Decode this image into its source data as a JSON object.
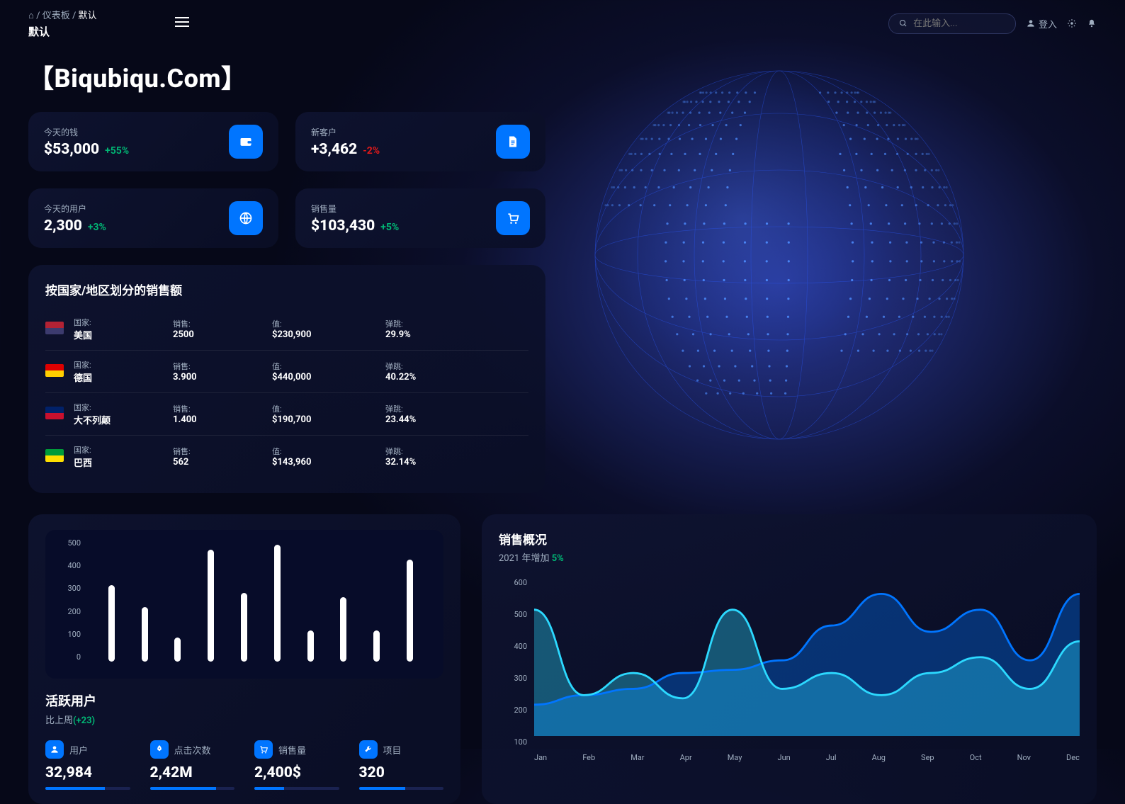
{
  "breadcrumb": {
    "dashboard": "仪表板",
    "current": "默认",
    "title": "默认"
  },
  "search": {
    "placeholder": "在此输入..."
  },
  "login_label": "登入",
  "site_title": "【Biqubiqu.Com】",
  "stats": [
    {
      "label": "今天的钱",
      "value": "$53,000",
      "delta": "+55%",
      "delta_class": "pos",
      "icon": "wallet"
    },
    {
      "label": "新客户",
      "value": "+3,462",
      "delta": "-2%",
      "delta_class": "neg",
      "icon": "doc"
    },
    {
      "label": "今天的用户",
      "value": "2,300",
      "delta": "+3%",
      "delta_class": "pos",
      "icon": "globe"
    },
    {
      "label": "销售量",
      "value": "$103,430",
      "delta": "+5%",
      "delta_class": "pos",
      "icon": "cart"
    }
  ],
  "country_panel": {
    "title": "按国家/地区划分的销售额",
    "headers": {
      "country": "国家:",
      "sales": "销售:",
      "value": "值:",
      "bounce": "弹跳:"
    },
    "rows": [
      {
        "flag": "#b22234",
        "flag2": "#3c3b6e",
        "name": "美国",
        "sales": "2500",
        "value": "$230,900",
        "bounce": "29.9%"
      },
      {
        "flag": "#dd0000",
        "flag2": "#ffce00",
        "name": "德国",
        "sales": "3.900",
        "value": "$440,000",
        "bounce": "40.22%"
      },
      {
        "flag": "#012169",
        "flag2": "#c8102e",
        "name": "大不列颠",
        "sales": "1.400",
        "value": "$190,700",
        "bounce": "23.44%"
      },
      {
        "flag": "#009b3a",
        "flag2": "#fedf00",
        "name": "巴西",
        "sales": "562",
        "value": "$143,960",
        "bounce": "32.14%"
      }
    ]
  },
  "bar_chart": {
    "ymax": 500,
    "ytick_step": 100,
    "ylabels": [
      "500",
      "400",
      "300",
      "200",
      "100",
      "0"
    ],
    "values": [
      320,
      230,
      100,
      470,
      290,
      490,
      130,
      270,
      130,
      430
    ],
    "bar_color": "#ffffff",
    "bg_color": "#070c29"
  },
  "active_users": {
    "title": "活跃用户",
    "subtitle_prefix": "比上周",
    "subtitle_value": "(+23)",
    "kpis": [
      {
        "icon": "user",
        "label": "用户",
        "value": "32,984",
        "progress": 70
      },
      {
        "icon": "rocket",
        "label": "点击次数",
        "value": "2,42M",
        "progress": 78
      },
      {
        "icon": "cart",
        "label": "销售量",
        "value": "2,400$",
        "progress": 35
      },
      {
        "icon": "wrench",
        "label": "项目",
        "value": "320",
        "progress": 55
      }
    ]
  },
  "sales_overview": {
    "title": "销售概况",
    "subtitle_year": "2021 年",
    "subtitle_text": "增加",
    "subtitle_pct": "5%",
    "ylabels": [
      "600",
      "500",
      "400",
      "300",
      "200",
      "100"
    ],
    "xlabels": [
      "Jan",
      "Feb",
      "Mar",
      "Apr",
      "May",
      "Jun",
      "Jul",
      "Aug",
      "Sep",
      "Oct",
      "Nov",
      "Dec"
    ],
    "series1": [
      500,
      230,
      300,
      220,
      500,
      250,
      300,
      230,
      300,
      350,
      250,
      400
    ],
    "series2": [
      200,
      230,
      250,
      300,
      310,
      340,
      450,
      550,
      430,
      500,
      340,
      550
    ],
    "ylim": [
      100,
      600
    ],
    "color1": "#2cd9ff",
    "color2": "#0075ff",
    "fill_opacity": 0.35
  },
  "colors": {
    "accent": "#0075ff",
    "positive": "#01b574",
    "negative": "#e31a1a",
    "card_bg": "rgba(12,16,42,0.85)",
    "text_muted": "#a0aec0"
  }
}
